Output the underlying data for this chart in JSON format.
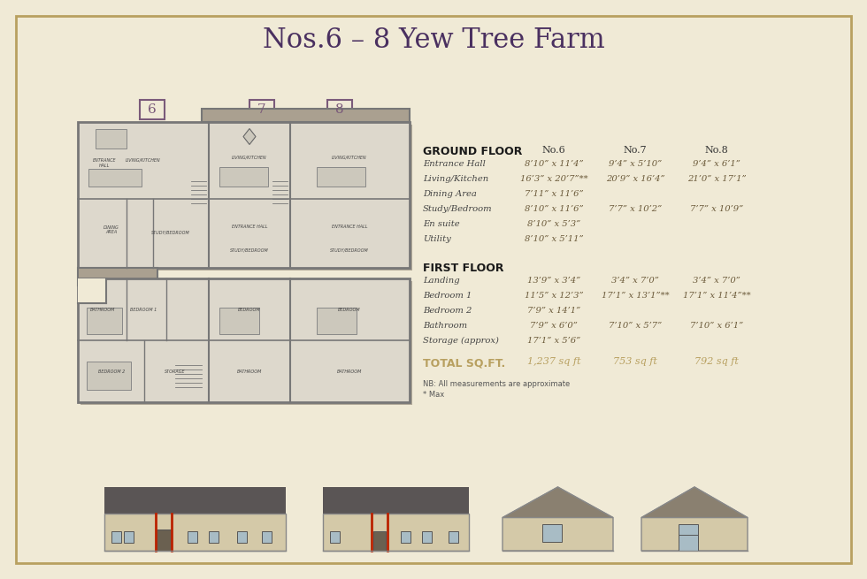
{
  "title": "Nos.6 – 8 Yew Tree Farm",
  "bg_color": "#f0ead6",
  "border_color": "#b8a060",
  "title_color": "#4a3060",
  "heading_color": "#333333",
  "label_color": "#555555",
  "value_color": "#6b5a3a",
  "total_color": "#b8a060",
  "unit_numbers": [
    "6",
    "7",
    "8"
  ],
  "ground_floor_header": "GROUND FLOOR",
  "ground_floor_col1": "No.6",
  "ground_floor_col2": "No.7",
  "ground_floor_col3": "No.8",
  "ground_floor_rows": [
    [
      "Entrance Hall",
      "8’10” x 11’4”",
      "9’4” x 5’10”",
      "9’4” x 6’1”"
    ],
    [
      "Living/Kitchen",
      "16’3” x 20’7”**",
      "20’9” x 16’4”",
      "21’0” x 17’1”"
    ],
    [
      "Dining Area",
      "7’11” x 11’6”",
      "",
      ""
    ],
    [
      "Study/Bedroom",
      "8’10” x 11’6”",
      "7’7” x 10’2”",
      "7’7” x 10’9”"
    ],
    [
      "En suite",
      "8’10” x 5’3”",
      "",
      ""
    ],
    [
      "Utility",
      "8’10” x 5’11”",
      "",
      ""
    ]
  ],
  "first_floor_header": "FIRST FLOOR",
  "first_floor_rows": [
    [
      "Landing",
      "13’9” x 3’4”",
      "3’4” x 7’0”",
      "3’4” x 7’0”"
    ],
    [
      "Bedroom 1",
      "11’5” x 12’3”",
      "17’1” x 13’1”**",
      "17’1” x 11’4”**"
    ],
    [
      "Bedroom 2",
      "7’9” x 14’1”",
      "",
      ""
    ],
    [
      "Bathroom",
      "7’9” x 6’0”",
      "7’10” x 5’7”",
      "7’10” x 6’1”"
    ],
    [
      "Storage (approx)",
      "17’1” x 5’6”",
      "",
      ""
    ]
  ],
  "total_label": "TOTAL SQ.FT.",
  "total_values": [
    "1,237 sq ft",
    "753 sq ft",
    "792 sq ft"
  ],
  "note1": "NB: All measurements are approximate",
  "note2": "* Max"
}
